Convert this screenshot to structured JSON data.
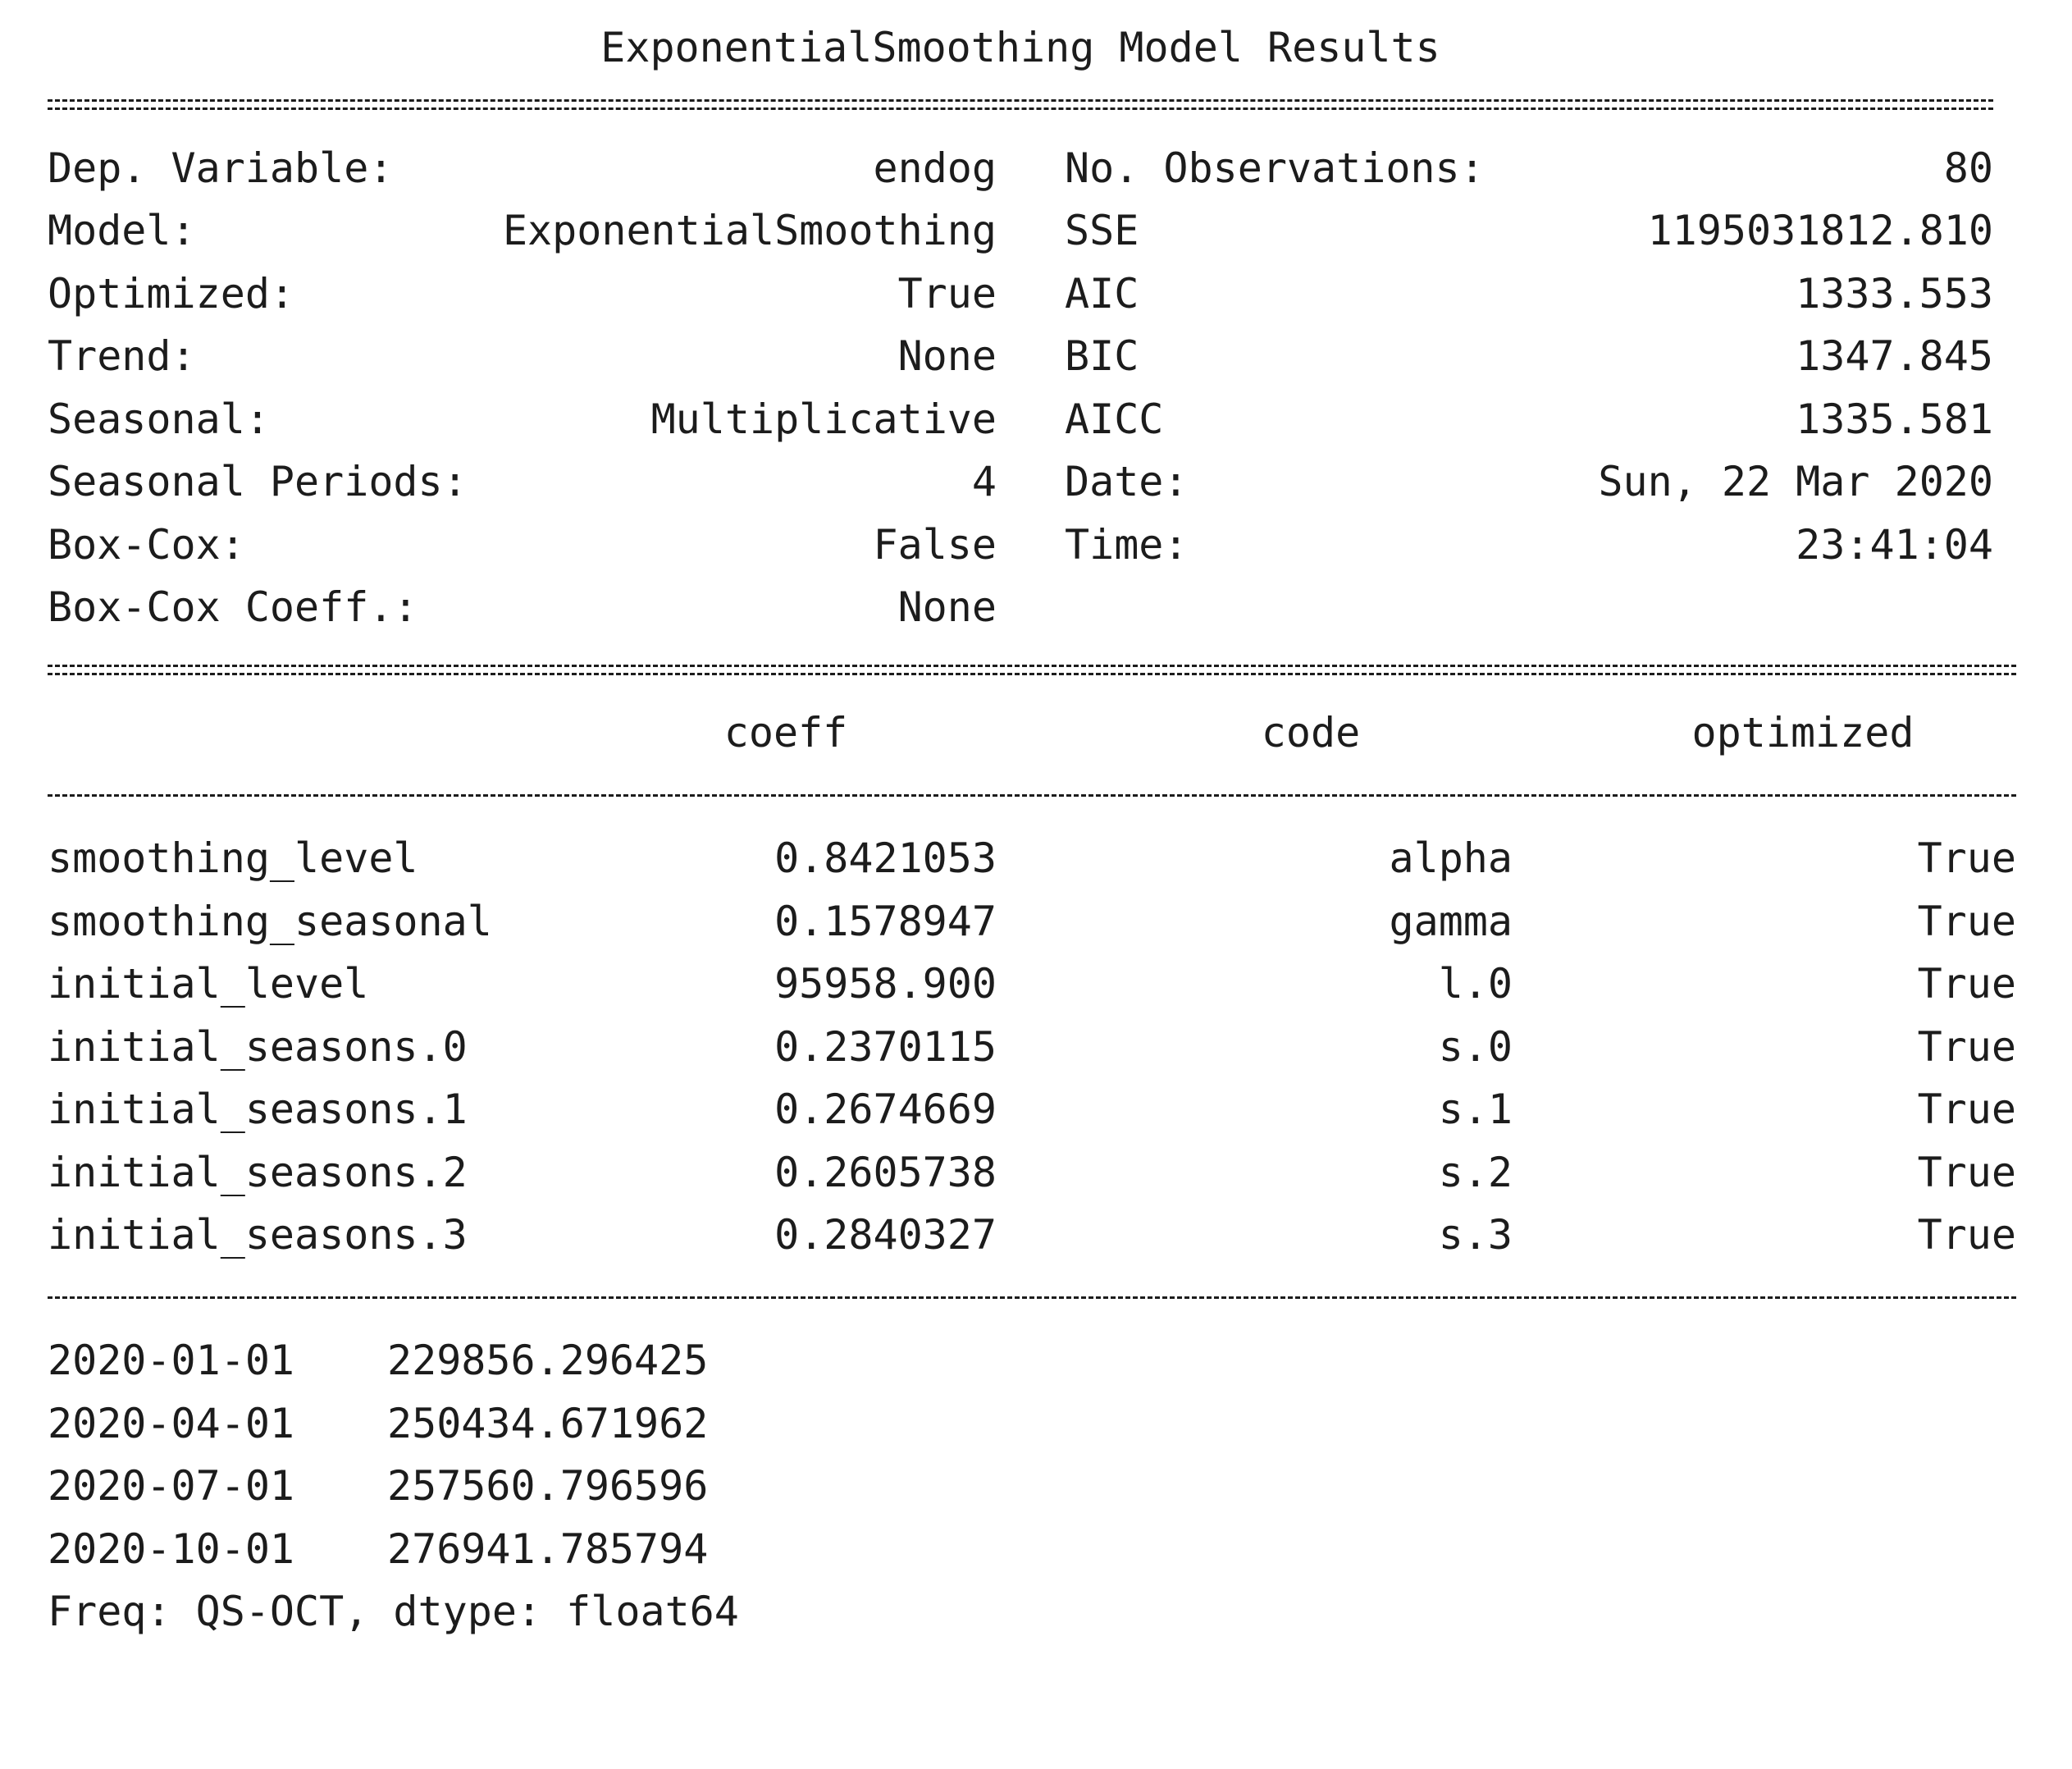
{
  "summary": {
    "title": "ExponentialSmoothing Model Results",
    "left_fields": [
      {
        "label": "Dep. Variable:",
        "value": "endog"
      },
      {
        "label": "Model:",
        "value": "ExponentialSmoothing"
      },
      {
        "label": "Optimized:",
        "value": "True"
      },
      {
        "label": "Trend:",
        "value": "None"
      },
      {
        "label": "Seasonal:",
        "value": "Multiplicative"
      },
      {
        "label": "Seasonal Periods:",
        "value": "4"
      },
      {
        "label": "Box-Cox:",
        "value": "False"
      },
      {
        "label": "Box-Cox Coeff.:",
        "value": "None"
      }
    ],
    "right_fields": [
      {
        "label": "No. Observations:",
        "value": "80"
      },
      {
        "label": "SSE",
        "value": "1195031812.810"
      },
      {
        "label": "AIC",
        "value": "1333.553"
      },
      {
        "label": "BIC",
        "value": "1347.845"
      },
      {
        "label": "AICC",
        "value": "1335.581"
      },
      {
        "label": "Date:",
        "value": "Sun, 22 Mar 2020"
      },
      {
        "label": "Time:",
        "value": "23:41:04"
      }
    ]
  },
  "params_table": {
    "headers": {
      "coeff": "coeff",
      "code": "code",
      "optimized": "optimized"
    },
    "rows": [
      {
        "name": "smoothing_level",
        "coeff": "0.8421053",
        "code": "alpha",
        "optimized": "True"
      },
      {
        "name": "smoothing_seasonal",
        "coeff": "0.1578947",
        "code": "gamma",
        "optimized": "True"
      },
      {
        "name": "initial_level",
        "coeff": "95958.900",
        "code": "l.0",
        "optimized": "True"
      },
      {
        "name": "initial_seasons.0",
        "coeff": "0.2370115",
        "code": "s.0",
        "optimized": "True"
      },
      {
        "name": "initial_seasons.1",
        "coeff": "0.2674669",
        "code": "s.1",
        "optimized": "True"
      },
      {
        "name": "initial_seasons.2",
        "coeff": "0.2605738",
        "code": "s.2",
        "optimized": "True"
      },
      {
        "name": "initial_seasons.3",
        "coeff": "0.2840327",
        "code": "s.3",
        "optimized": "True"
      }
    ]
  },
  "forecast": {
    "rows": [
      {
        "date": "2020-01-01",
        "value": "229856.296425"
      },
      {
        "date": "2020-04-01",
        "value": "250434.671962"
      },
      {
        "date": "2020-07-01",
        "value": "257560.796596"
      },
      {
        "date": "2020-10-01",
        "value": "276941.785794"
      }
    ],
    "footer": "Freq: QS-OCT, dtype: float64"
  }
}
